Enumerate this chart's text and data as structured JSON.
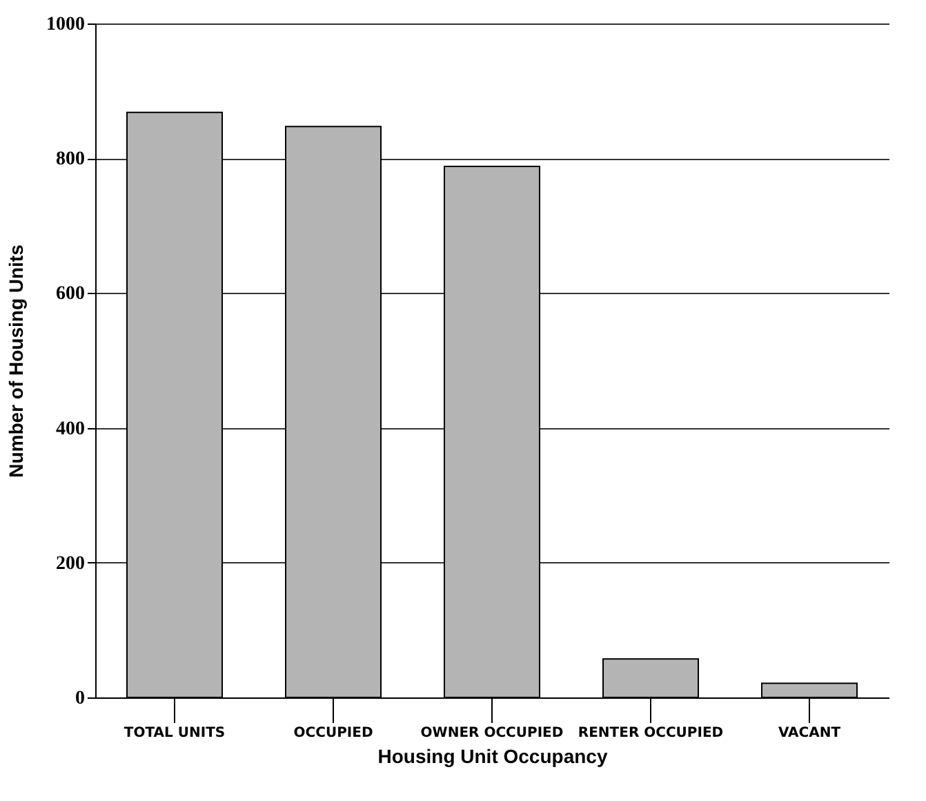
{
  "chart_data": {
    "type": "bar",
    "xlabel": "Housing Unit Occupancy",
    "ylabel": "Number of Housing Units",
    "categories": [
      "TOTAL UNITS",
      "OCCUPIED",
      "OWNER OCCUPIED",
      "RENTER OCCUPIED",
      "VACANT"
    ],
    "values": [
      868,
      847,
      788,
      57,
      21
    ],
    "color": "#b4b4b4",
    "ylim": [
      0,
      1000
    ],
    "yticks": [
      0,
      200,
      400,
      600,
      800,
      1000
    ],
    "grid": "y"
  }
}
